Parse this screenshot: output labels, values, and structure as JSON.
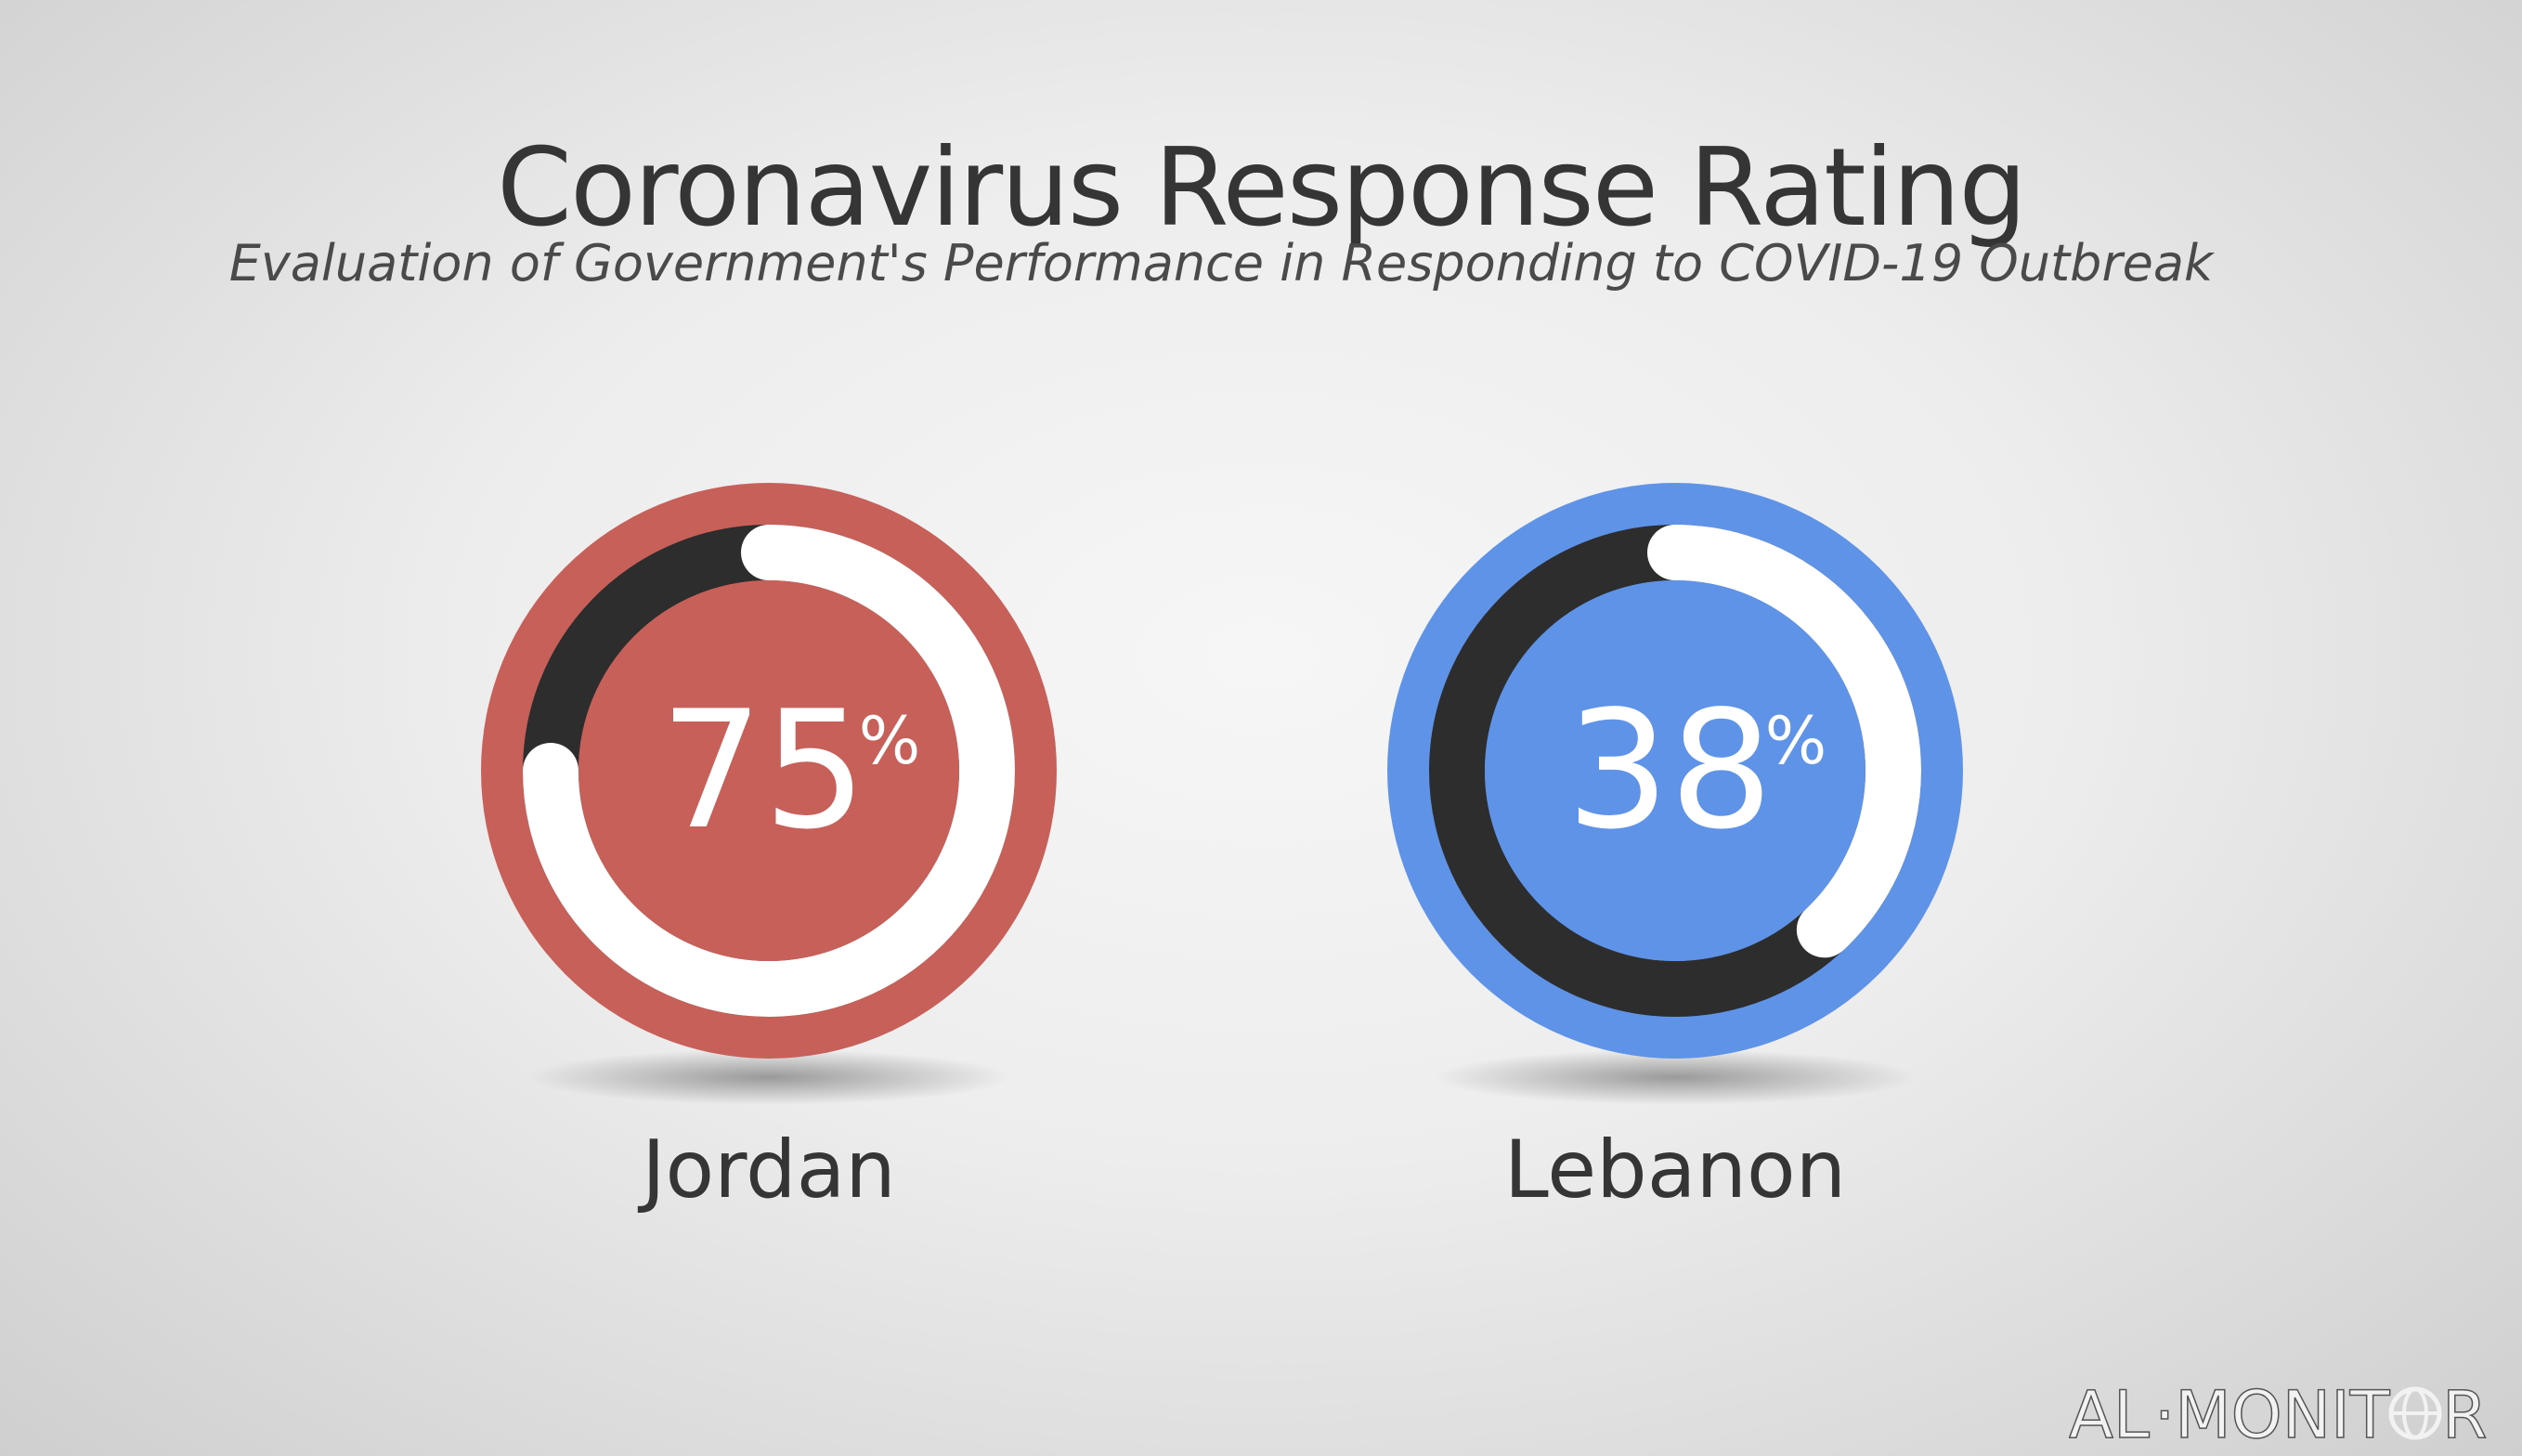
{
  "chart_data": [
    {
      "type": "donut",
      "title": "Coronavirus Response Rating",
      "subtitle": "Evaluation of Government's Performance in Responding to COVID-19 Outbreak",
      "categories": [
        "Jordan",
        "Lebanon"
      ],
      "values": [
        75,
        38
      ],
      "unit": "%",
      "colors": {
        "Jordan": "#c8605a",
        "Lebanon": "#5f93e8",
        "track": "#2d2d2d",
        "progress": "#ffffff"
      }
    }
  ],
  "header": {
    "title": "Coronavirus Response Rating",
    "subtitle": "Evaluation of Government's Performance in Responding to COVID-19 Outbreak"
  },
  "items": [
    {
      "country": "Jordan",
      "value": "75",
      "unit": "%",
      "percent": 75,
      "color": "#c8605a"
    },
    {
      "country": "Lebanon",
      "value": "38",
      "unit": "%",
      "percent": 38,
      "color": "#5f93e8"
    }
  ],
  "logo": {
    "text": "AL-MONITOR",
    "icon": "globe-icon"
  }
}
